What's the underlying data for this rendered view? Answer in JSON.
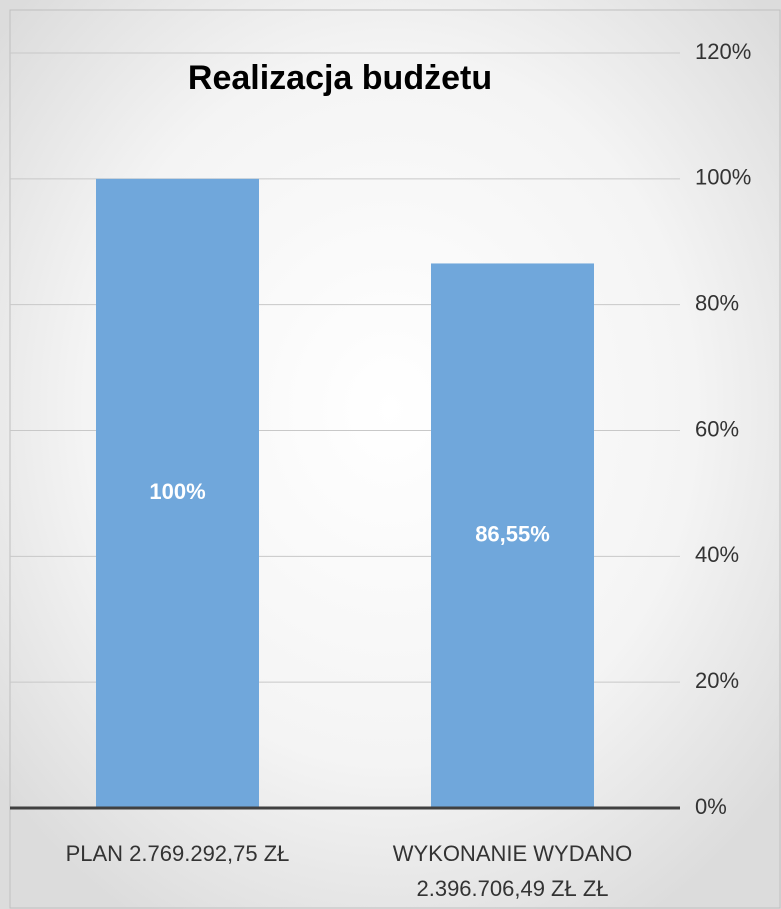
{
  "chart_data": {
    "type": "bar",
    "title": "Realizacja budżetu",
    "categories": [
      "PLAN 2.769.292,75  ZŁ",
      "WYKONANIE WYDANO 2.396.706,49 ZŁ ZŁ"
    ],
    "values": [
      100,
      86.55
    ],
    "value_labels": [
      "100%",
      "86,55%"
    ],
    "color": "#70a7db",
    "ylim": [
      0,
      120
    ],
    "yticks": [
      {
        "value": 0,
        "label": "0%"
      },
      {
        "value": 20,
        "label": "20%"
      },
      {
        "value": 40,
        "label": "40%"
      },
      {
        "value": 60,
        "label": "60%"
      },
      {
        "value": 80,
        "label": "80%"
      },
      {
        "value": 100,
        "label": "100%"
      },
      {
        "value": 120,
        "label": "120%"
      }
    ],
    "grid": true
  }
}
